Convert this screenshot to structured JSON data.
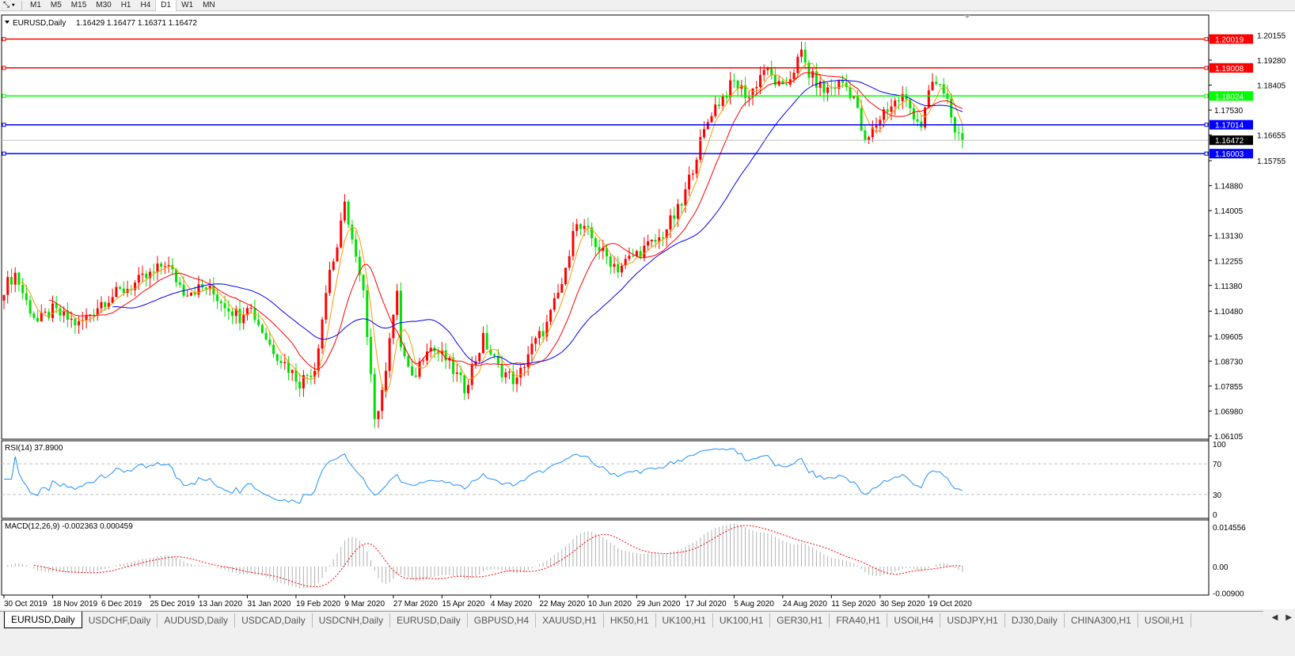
{
  "toolbar": {
    "timeframes": [
      "M1",
      "M5",
      "M15",
      "M30",
      "H1",
      "H4",
      "D1",
      "W1",
      "MN"
    ],
    "active": "D1"
  },
  "chart_title": "EURUSD,Daily",
  "ohlc": "1.16429 1.16477 1.16371 1.16472",
  "current_price": "1.16472",
  "colors": {
    "up": "#ff0000",
    "down": "#00e000",
    "ma_fast": "#ff9900",
    "ma_mid": "#ff0000",
    "ma_slow": "#0000ff",
    "rsi": "#1e90ff",
    "macd_hist": "#b0b0b0",
    "macd_signal": "#ff0000"
  },
  "hlines": [
    {
      "price": "1.20019",
      "color": "#ff0000"
    },
    {
      "price": "1.19008",
      "color": "#ff0000"
    },
    {
      "price": "1.18024",
      "color": "#00ff00"
    },
    {
      "price": "1.17014",
      "color": "#0000ff"
    },
    {
      "price": "1.16003",
      "color": "#0000ff"
    }
  ],
  "price_ticks": [
    "1.20155",
    "1.19280",
    "1.18405",
    "1.17530",
    "1.16655",
    "1.15755",
    "1.14880",
    "1.14005",
    "1.13130",
    "1.12255",
    "1.11380",
    "1.10480",
    "1.09605",
    "1.08730",
    "1.07855",
    "1.06980",
    "1.06105"
  ],
  "rsi": {
    "label": "RSI(14) 37.8900",
    "ticks": [
      "100",
      "70",
      "30",
      "0"
    ]
  },
  "macd": {
    "label": "MACD(12,26,9) -0.002363 0.000459",
    "ticks": [
      "0.014556",
      "0.00",
      "-0.00900"
    ]
  },
  "date_labels": [
    "30 Oct 2019",
    "18 Nov 2019",
    "6 Dec 2019",
    "25 Dec 2019",
    "13 Jan 2020",
    "31 Jan 2020",
    "19 Feb 2020",
    "9 Mar 2020",
    "27 Mar 2020",
    "15 Apr 2020",
    "4 May 2020",
    "22 May 2020",
    "10 Jun 2020",
    "29 Jun 2020",
    "17 Jul 2020",
    "5 Aug 2020",
    "24 Aug 2020",
    "11 Sep 2020",
    "30 Sep 2020",
    "19 Oct 2020"
  ],
  "tabs": [
    "EURUSD,Daily",
    "USDCHF,Daily",
    "AUDUSD,Daily",
    "USDCAD,Daily",
    "USDCNH,Daily",
    "EURUSD,Daily",
    "GBPUSD,H4",
    "XAUUSD,H1",
    "HK50,H1",
    "UK100,H1",
    "UK100,H1",
    "GER30,H1",
    "FRA40,H1",
    "USOil,H4",
    "USDJPY,H1",
    "DJ30,Daily",
    "CHINA300,H1",
    "USOil,H1"
  ],
  "chart_data": {
    "type": "candlestick",
    "symbol": "EURUSD",
    "timeframe": "Daily",
    "ylim": [
      1.06105,
      1.20155
    ],
    "approx_close_by_bar": [
      [
        0,
        1.113
      ],
      [
        3,
        1.118
      ],
      [
        6,
        1.108
      ],
      [
        9,
        1.101
      ],
      [
        13,
        1.105
      ],
      [
        20,
        1.1
      ],
      [
        26,
        1.108
      ],
      [
        33,
        1.113
      ],
      [
        40,
        1.118
      ],
      [
        43,
        1.122
      ],
      [
        48,
        1.112
      ],
      [
        54,
        1.113
      ],
      [
        63,
        1.103
      ],
      [
        65,
        1.108
      ],
      [
        71,
        1.093
      ],
      [
        79,
        1.08
      ],
      [
        83,
        1.085
      ],
      [
        87,
        1.12
      ],
      [
        89,
        1.125
      ],
      [
        91,
        1.145
      ],
      [
        92,
        1.135
      ],
      [
        96,
        1.11
      ],
      [
        98,
        1.085
      ],
      [
        99,
        1.067
      ],
      [
        101,
        1.075
      ],
      [
        103,
        1.097
      ],
      [
        105,
        1.11
      ],
      [
        106,
        1.093
      ],
      [
        109,
        1.08
      ],
      [
        113,
        1.093
      ],
      [
        118,
        1.088
      ],
      [
        123,
        1.078
      ],
      [
        128,
        1.095
      ],
      [
        132,
        1.085
      ],
      [
        137,
        1.08
      ],
      [
        140,
        1.09
      ],
      [
        145,
        1.1
      ],
      [
        150,
        1.118
      ],
      [
        152,
        1.135
      ],
      [
        156,
        1.132
      ],
      [
        160,
        1.125
      ],
      [
        164,
        1.12
      ],
      [
        169,
        1.125
      ],
      [
        175,
        1.13
      ],
      [
        181,
        1.142
      ],
      [
        185,
        1.16
      ],
      [
        189,
        1.175
      ],
      [
        192,
        1.18
      ],
      [
        195,
        1.185
      ],
      [
        199,
        1.18
      ],
      [
        203,
        1.19
      ],
      [
        208,
        1.182
      ],
      [
        213,
        1.195
      ],
      [
        215,
        1.188
      ],
      [
        219,
        1.182
      ],
      [
        224,
        1.185
      ],
      [
        227,
        1.18
      ],
      [
        230,
        1.163
      ],
      [
        232,
        1.168
      ],
      [
        235,
        1.175
      ],
      [
        240,
        1.18
      ],
      [
        245,
        1.17
      ],
      [
        248,
        1.185
      ],
      [
        251,
        1.182
      ],
      [
        253,
        1.175
      ],
      [
        254,
        1.165
      ],
      [
        256,
        1.16472
      ]
    ]
  }
}
